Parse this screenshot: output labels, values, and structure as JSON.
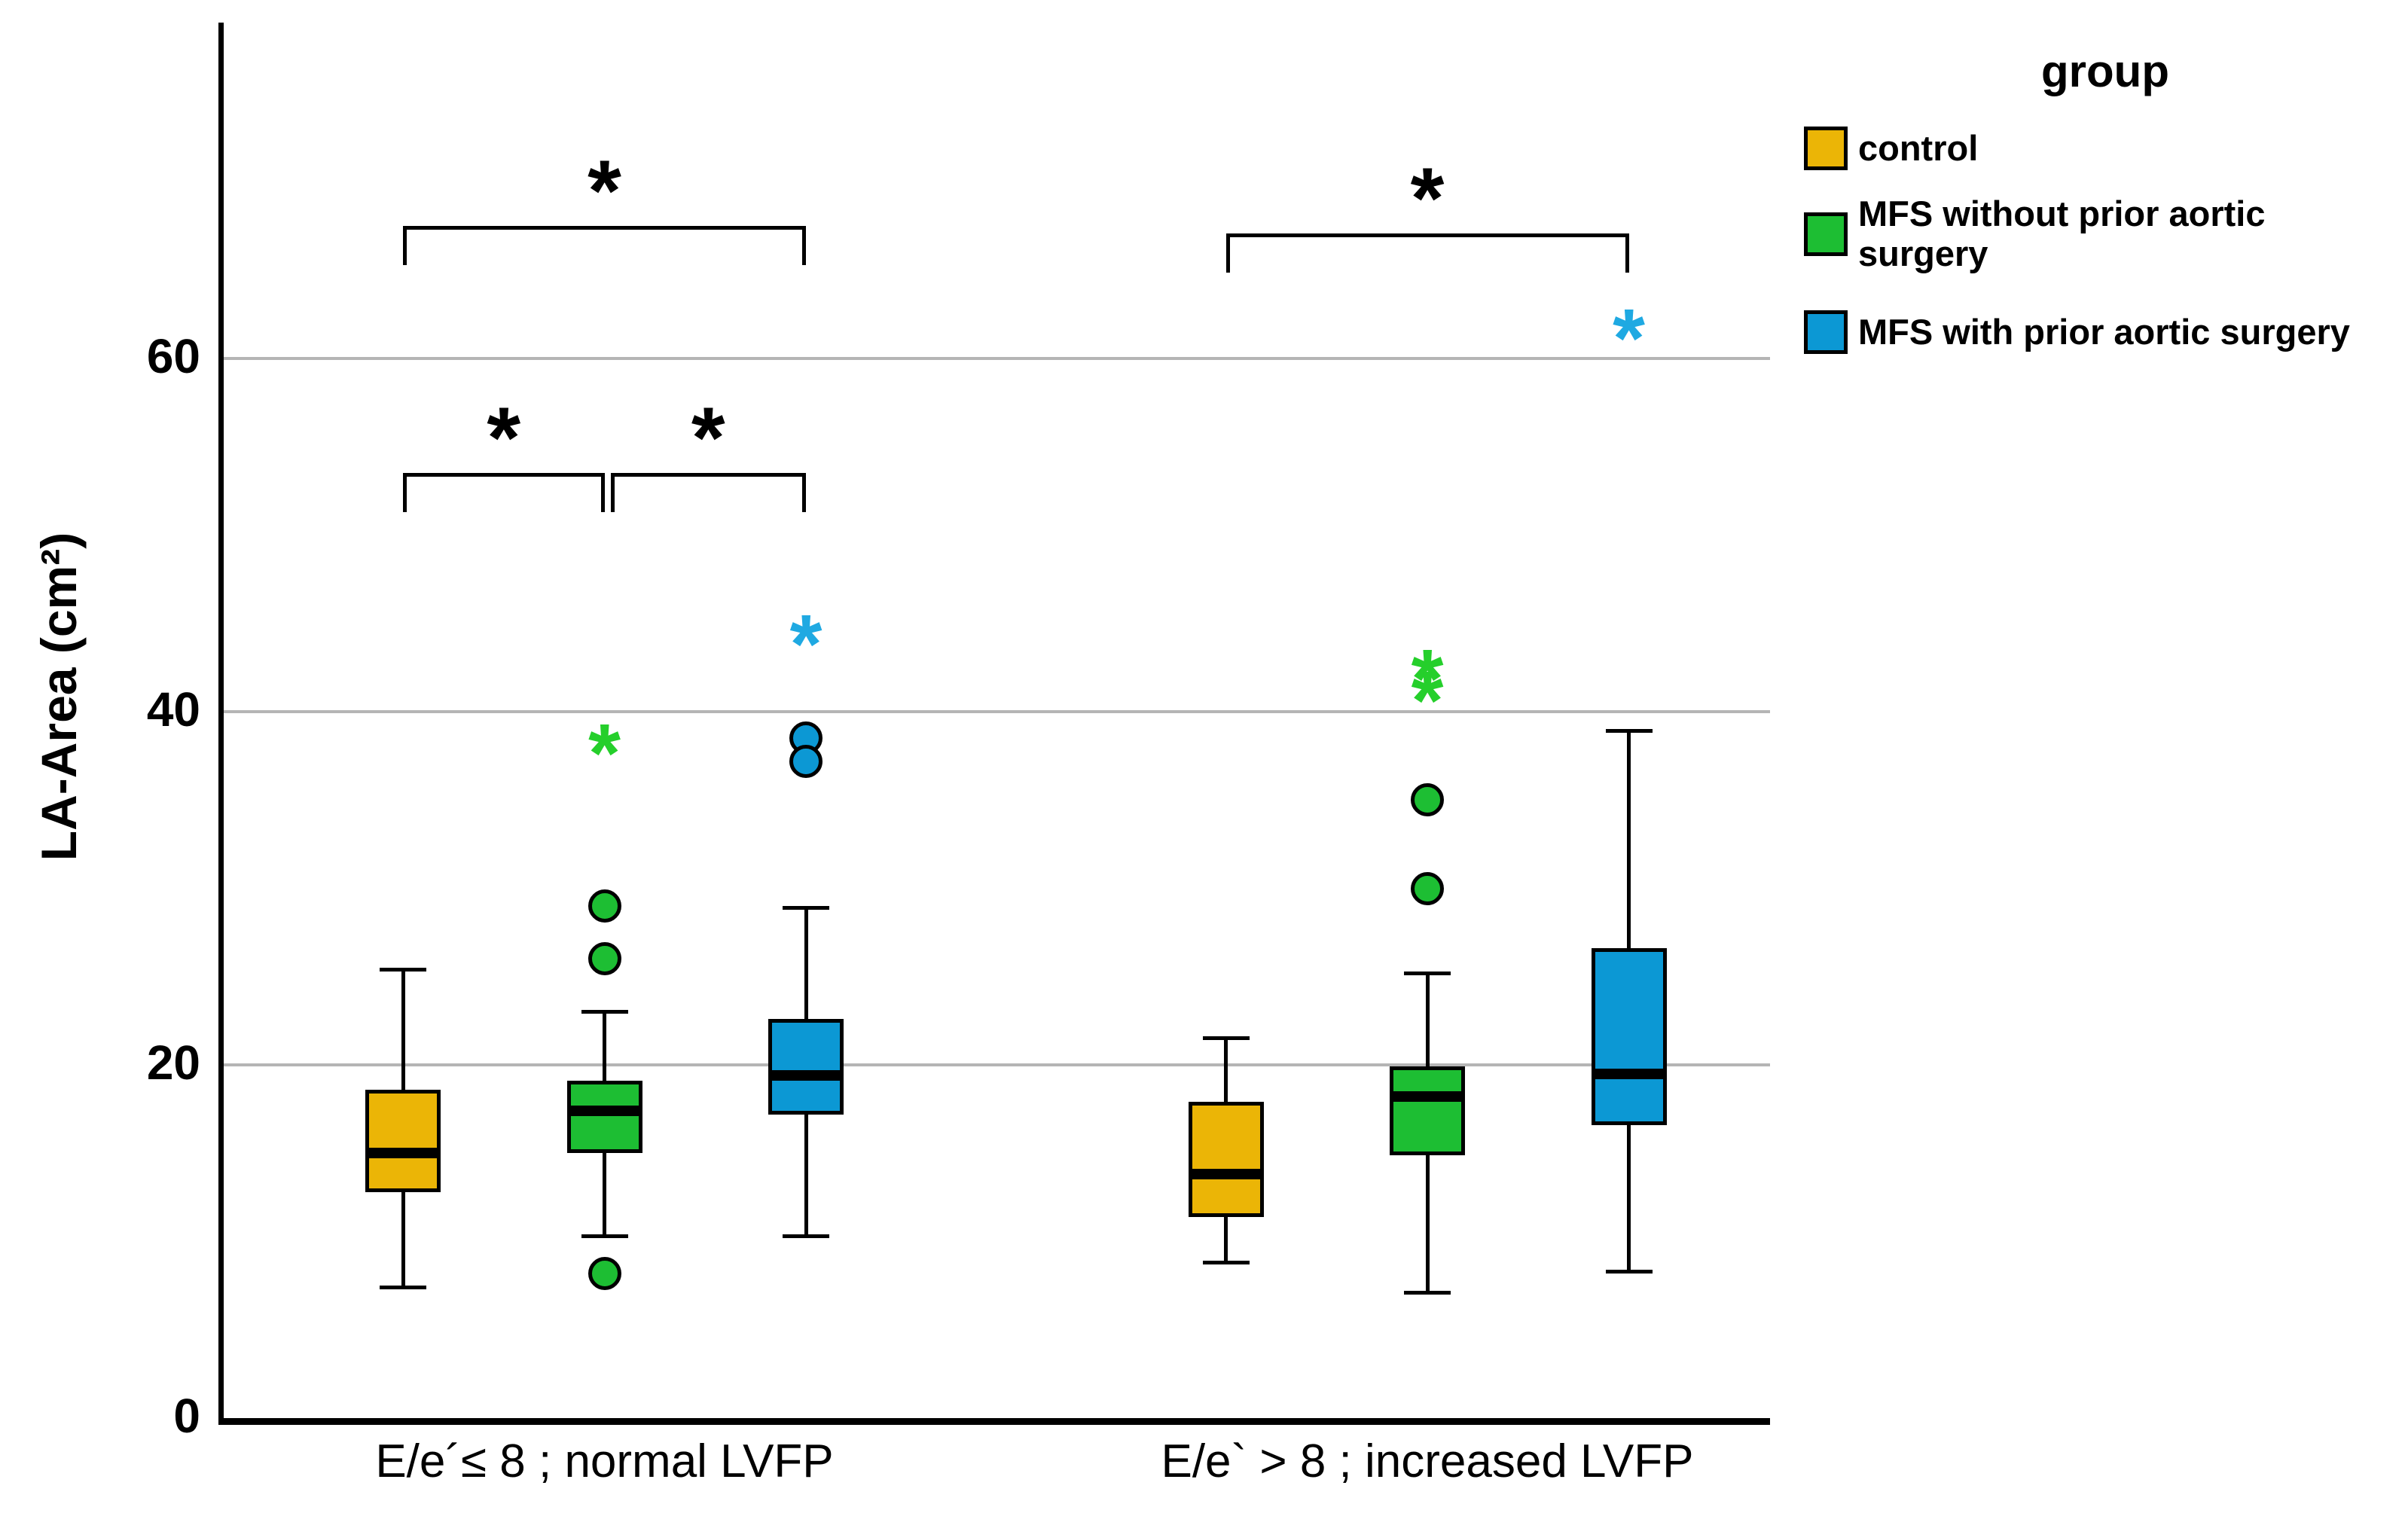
{
  "axes": {
    "y_label": "LA-Area (cm²)",
    "y_ticks": [
      "0",
      "20",
      "40",
      "60"
    ],
    "y_tick_values": [
      0,
      20,
      40,
      60
    ],
    "gridline_values": [
      20,
      40,
      60
    ],
    "categories": [
      "E/e´≤ 8 ; normal LVFP",
      "E/e` > 8 ; increased LVFP"
    ]
  },
  "legend": {
    "title": "group",
    "items": [
      {
        "label": "control",
        "color": "#EBB506"
      },
      {
        "label": "MFS without prior aortic surgery",
        "color": "#1DBE33"
      },
      {
        "label": "MFS with prior aortic surgery",
        "color": "#0C98D4"
      }
    ]
  },
  "chart_data": {
    "type": "box",
    "title": "",
    "xlabel": "",
    "ylabel": "LA-Area (cm²)",
    "ylim": [
      0,
      79
    ],
    "grid": "horizontal",
    "gridline_values": [
      20,
      40,
      60
    ],
    "legend_position": "top-right",
    "legend_title": "group",
    "categories": [
      "E/e´≤ 8 ; normal LVFP",
      "E/e` > 8 ; increased LVFP"
    ],
    "series": [
      {
        "name": "control",
        "color": "#EBB506",
        "star_color": "#EBB506",
        "boxes": [
          {
            "low": 7.4,
            "q1": 12.8,
            "median": 15.0,
            "q3": 18.6,
            "high": 25.4,
            "circles": [],
            "stars": []
          },
          {
            "low": 8.8,
            "q1": 11.4,
            "median": 13.8,
            "q3": 17.9,
            "high": 21.5,
            "circles": [],
            "stars": []
          }
        ]
      },
      {
        "name": "MFS without prior aortic surgery",
        "color": "#1DBE33",
        "star_color": "#25CF2B",
        "boxes": [
          {
            "low": 10.3,
            "q1": 15.0,
            "median": 17.4,
            "q3": 19.1,
            "high": 23.0,
            "circles": [
              29.0,
              26.0,
              8.2
            ],
            "stars": [
              38.0
            ]
          },
          {
            "low": 7.1,
            "q1": 14.9,
            "median": 18.2,
            "q3": 19.9,
            "high": 25.2,
            "circles": [
              35.0,
              30.0
            ],
            "stars": [
              42.2,
              41.0
            ]
          }
        ]
      },
      {
        "name": "MFS with prior aortic surgery",
        "color": "#0C98D4",
        "star_color": "#1FA9E2",
        "boxes": [
          {
            "low": 10.3,
            "q1": 17.2,
            "median": 19.4,
            "q3": 22.6,
            "high": 28.9,
            "circles": [
              38.5,
              37.2
            ],
            "stars": [
              44.2
            ]
          },
          {
            "low": 8.3,
            "q1": 16.6,
            "median": 19.5,
            "q3": 26.6,
            "high": 38.9,
            "circles": [],
            "stars": [
              61.5
            ]
          }
        ]
      }
    ],
    "significance_brackets": [
      {
        "category": 0,
        "from": 0,
        "to": 2,
        "y": 67.5,
        "label": "*"
      },
      {
        "category": 0,
        "from": 0,
        "to": 1,
        "y": 53.5,
        "label": "*"
      },
      {
        "category": 0,
        "from": 1,
        "to": 2,
        "y": 53.5,
        "label": "*"
      },
      {
        "category": 1,
        "from": 0,
        "to": 2,
        "y": 67.1,
        "label": "*"
      }
    ]
  }
}
